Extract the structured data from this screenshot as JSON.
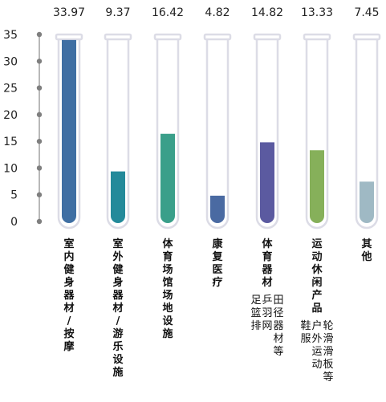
{
  "chart_data": {
    "type": "bar",
    "style": "test-tube",
    "ylim": [
      0,
      35
    ],
    "yticks": [
      0,
      5,
      10,
      15,
      20,
      25,
      30,
      35
    ],
    "grid": false,
    "categories": [
      [
        "室内健身器材/按摩"
      ],
      [
        "室外健身器材/游乐设施"
      ],
      [
        "体育场馆场地设施"
      ],
      [
        "康复医疗"
      ],
      [
        "体育器材",
        "田径器材等",
        "乒羽网",
        "足篮排"
      ],
      [
        "运动休闲产品",
        "轮滑滑板等",
        "户外运动",
        "鞋服"
      ],
      [
        "其他"
      ]
    ],
    "values": [
      33.97,
      9.37,
      16.42,
      4.82,
      14.82,
      13.33,
      7.45
    ],
    "value_labels": [
      "33.97",
      "9.37",
      "16.42",
      "4.82",
      "14.82",
      "13.33",
      "7.45"
    ],
    "colors": [
      "#3f6fa3",
      "#248a9a",
      "#3a9f8a",
      "#4a6aa2",
      "#5b5aa0",
      "#86b05a",
      "#9fb9c4"
    ],
    "tube_outline_color": "#dcdce6",
    "axis_color": "#888888"
  }
}
